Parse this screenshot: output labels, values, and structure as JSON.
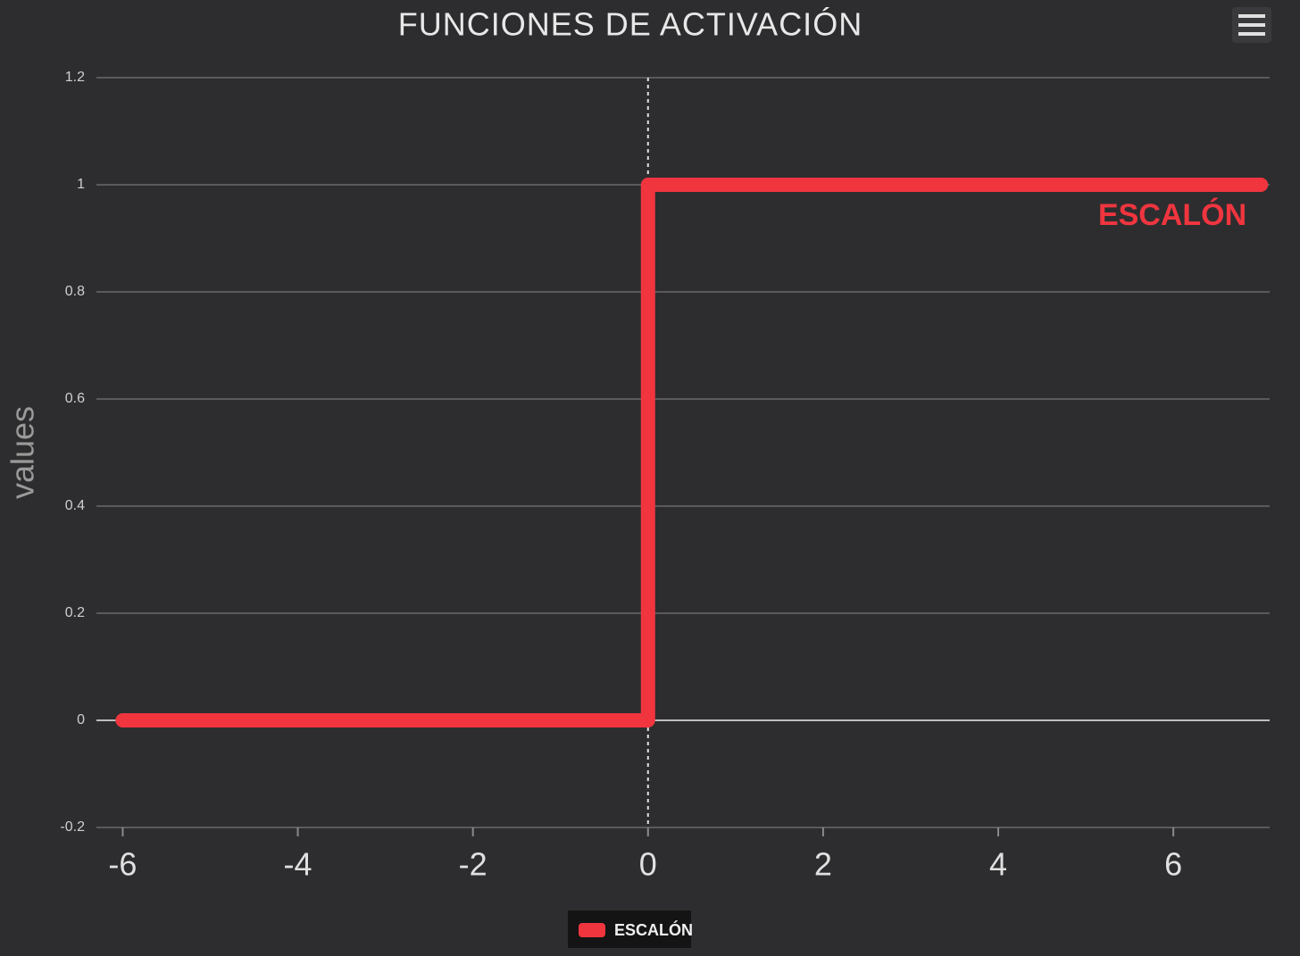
{
  "chart_data": {
    "type": "line",
    "title": "FUNCIONES DE ACTIVACIÓN",
    "y_label": "values",
    "x": [
      -6,
      0,
      0,
      7
    ],
    "series": [
      {
        "name": "ESCALÓN",
        "color": "#f0353f",
        "values": [
          0,
          0,
          1,
          1
        ]
      }
    ],
    "xlim": [
      -6.3,
      7.1
    ],
    "xticks": [
      -6,
      -4,
      -2,
      0,
      2,
      4,
      6
    ],
    "ylim": [
      -0.2,
      1.2
    ],
    "yticks": [
      -0.2,
      0,
      0.2,
      0.4,
      0.6,
      0.8,
      1,
      1.2
    ],
    "x_plot_line": 0,
    "grid": true,
    "legend": "bottom"
  }
}
